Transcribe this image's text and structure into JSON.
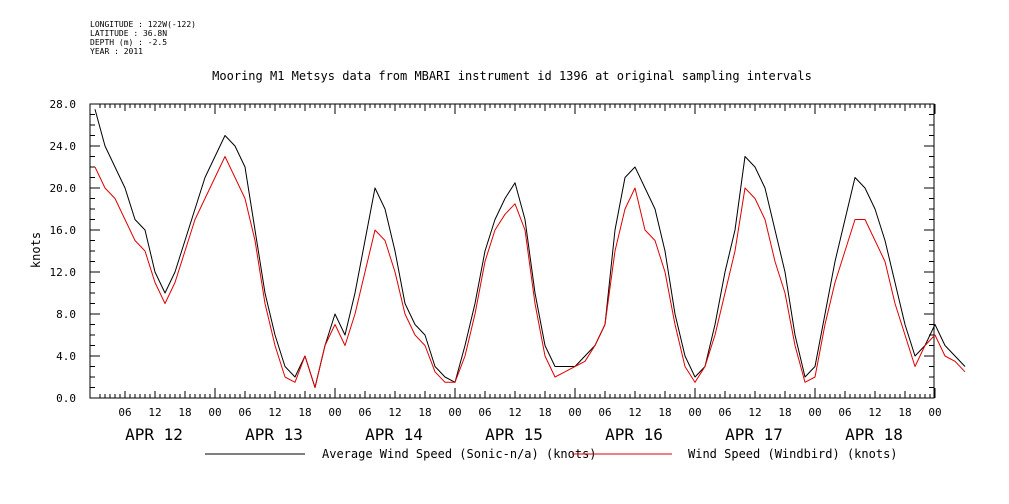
{
  "meta": {
    "longitude": "LONGITUDE : 122W(-122)",
    "latitude": "LATITUDE : 36.8N",
    "depth": "DEPTH (m) : -2.5",
    "year": "YEAR : 2011"
  },
  "chart_data": {
    "type": "line",
    "title": "Mooring M1 Metsys data from MBARI instrument id 1396 at original sampling intervals",
    "xlabel": "",
    "ylabel": "knots",
    "ylim": [
      0,
      28
    ],
    "xlim_hours": [
      0,
      174
    ],
    "y_ticks": [
      "0.0",
      "4.0",
      "8.0",
      "12.0",
      "16.0",
      "20.0",
      "24.0",
      "28.0"
    ],
    "x_hour_ticks": [
      "06",
      "12",
      "18",
      "00",
      "06",
      "12",
      "18",
      "00",
      "06",
      "12",
      "18",
      "00",
      "06",
      "12",
      "18",
      "00",
      "06",
      "12",
      "18",
      "00",
      "06",
      "12",
      "18",
      "00",
      "06",
      "12",
      "18",
      "00"
    ],
    "x_day_labels": [
      "APR 12",
      "APR 13",
      "APR 14",
      "APR 15",
      "APR 16",
      "APR 17",
      "APR 18"
    ],
    "grid": false,
    "legend_position": "bottom",
    "series": [
      {
        "name": "Average Wind Speed (Sonic-n/a) (knots)",
        "color": "#000000",
        "points": [
          [
            0,
            27.5
          ],
          [
            2,
            24
          ],
          [
            4,
            22
          ],
          [
            6,
            20
          ],
          [
            8,
            17
          ],
          [
            10,
            16
          ],
          [
            12,
            12
          ],
          [
            14,
            10
          ],
          [
            16,
            12
          ],
          [
            18,
            15
          ],
          [
            20,
            18
          ],
          [
            22,
            21
          ],
          [
            24,
            23
          ],
          [
            26,
            25
          ],
          [
            28,
            24
          ],
          [
            30,
            22
          ],
          [
            32,
            16
          ],
          [
            34,
            10
          ],
          [
            36,
            6
          ],
          [
            38,
            3
          ],
          [
            40,
            2
          ],
          [
            42,
            4
          ],
          [
            44,
            1
          ],
          [
            46,
            5
          ],
          [
            48,
            8
          ],
          [
            50,
            6
          ],
          [
            52,
            10
          ],
          [
            54,
            15
          ],
          [
            56,
            20
          ],
          [
            58,
            18
          ],
          [
            60,
            14
          ],
          [
            62,
            9
          ],
          [
            64,
            7
          ],
          [
            66,
            6
          ],
          [
            68,
            3
          ],
          [
            70,
            2
          ],
          [
            72,
            1.5
          ],
          [
            74,
            5
          ],
          [
            76,
            9
          ],
          [
            78,
            14
          ],
          [
            80,
            17
          ],
          [
            82,
            19
          ],
          [
            84,
            20.5
          ],
          [
            86,
            17
          ],
          [
            88,
            10
          ],
          [
            90,
            5
          ],
          [
            92,
            3
          ],
          [
            94,
            3
          ],
          [
            96,
            3
          ],
          [
            98,
            4
          ],
          [
            100,
            5
          ],
          [
            102,
            7
          ],
          [
            104,
            16
          ],
          [
            106,
            21
          ],
          [
            108,
            22
          ],
          [
            110,
            20
          ],
          [
            112,
            18
          ],
          [
            114,
            14
          ],
          [
            116,
            8
          ],
          [
            118,
            4
          ],
          [
            120,
            2
          ],
          [
            122,
            3
          ],
          [
            124,
            7
          ],
          [
            126,
            12
          ],
          [
            128,
            16
          ],
          [
            130,
            23
          ],
          [
            132,
            22
          ],
          [
            134,
            20
          ],
          [
            136,
            16
          ],
          [
            138,
            12
          ],
          [
            140,
            6
          ],
          [
            142,
            2
          ],
          [
            144,
            3
          ],
          [
            146,
            8
          ],
          [
            148,
            13
          ],
          [
            150,
            17
          ],
          [
            152,
            21
          ],
          [
            154,
            20
          ],
          [
            156,
            18
          ],
          [
            158,
            15
          ],
          [
            160,
            11
          ],
          [
            162,
            7
          ],
          [
            164,
            4
          ],
          [
            166,
            5
          ],
          [
            168,
            7
          ],
          [
            170,
            5
          ],
          [
            172,
            4
          ],
          [
            174,
            3
          ]
        ]
      },
      {
        "name": "Wind Speed (Windbird) (knots)",
        "color": "#e00000",
        "points": [
          [
            0,
            22
          ],
          [
            2,
            20
          ],
          [
            4,
            19
          ],
          [
            6,
            17
          ],
          [
            8,
            15
          ],
          [
            10,
            14
          ],
          [
            12,
            11
          ],
          [
            14,
            9
          ],
          [
            16,
            11
          ],
          [
            18,
            14
          ],
          [
            20,
            17
          ],
          [
            22,
            19
          ],
          [
            24,
            21
          ],
          [
            26,
            23
          ],
          [
            28,
            21
          ],
          [
            30,
            19
          ],
          [
            32,
            15
          ],
          [
            34,
            9
          ],
          [
            36,
            5
          ],
          [
            38,
            2
          ],
          [
            40,
            1.5
          ],
          [
            42,
            4
          ],
          [
            44,
            1
          ],
          [
            46,
            5
          ],
          [
            48,
            7
          ],
          [
            50,
            5
          ],
          [
            52,
            8
          ],
          [
            54,
            12
          ],
          [
            56,
            16
          ],
          [
            58,
            15
          ],
          [
            60,
            12
          ],
          [
            62,
            8
          ],
          [
            64,
            6
          ],
          [
            66,
            5
          ],
          [
            68,
            2.5
          ],
          [
            70,
            1.5
          ],
          [
            72,
            1.5
          ],
          [
            74,
            4
          ],
          [
            76,
            8
          ],
          [
            78,
            13
          ],
          [
            80,
            16
          ],
          [
            82,
            17.5
          ],
          [
            84,
            18.5
          ],
          [
            86,
            16
          ],
          [
            88,
            9
          ],
          [
            90,
            4
          ],
          [
            92,
            2
          ],
          [
            94,
            2.5
          ],
          [
            96,
            3
          ],
          [
            98,
            3.5
          ],
          [
            100,
            5
          ],
          [
            102,
            7
          ],
          [
            104,
            14
          ],
          [
            106,
            18
          ],
          [
            108,
            20
          ],
          [
            110,
            16
          ],
          [
            112,
            15
          ],
          [
            114,
            12
          ],
          [
            116,
            7
          ],
          [
            118,
            3
          ],
          [
            120,
            1.5
          ],
          [
            122,
            3
          ],
          [
            124,
            6
          ],
          [
            126,
            10
          ],
          [
            128,
            14
          ],
          [
            130,
            20
          ],
          [
            132,
            19
          ],
          [
            134,
            17
          ],
          [
            136,
            13
          ],
          [
            138,
            10
          ],
          [
            140,
            5
          ],
          [
            142,
            1.5
          ],
          [
            144,
            2
          ],
          [
            146,
            7
          ],
          [
            148,
            11
          ],
          [
            150,
            14
          ],
          [
            152,
            17
          ],
          [
            154,
            17
          ],
          [
            156,
            15
          ],
          [
            158,
            13
          ],
          [
            160,
            9
          ],
          [
            162,
            6
          ],
          [
            164,
            3
          ],
          [
            166,
            5
          ],
          [
            168,
            6
          ],
          [
            170,
            4
          ],
          [
            172,
            3.5
          ],
          [
            174,
            2.5
          ]
        ]
      }
    ]
  }
}
